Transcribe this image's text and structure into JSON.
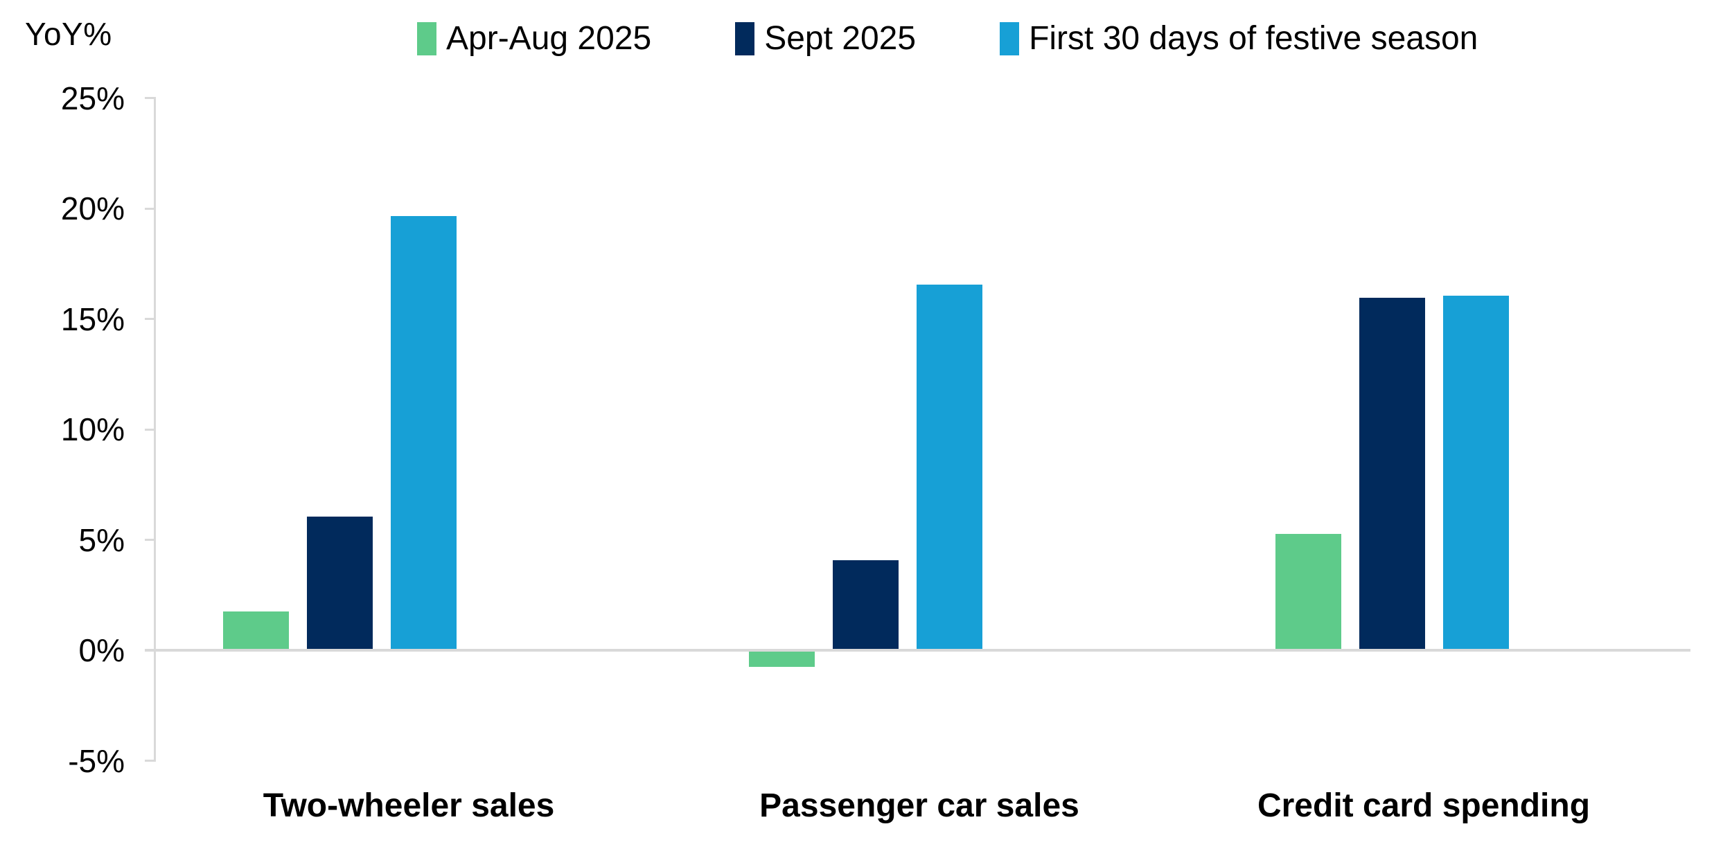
{
  "chart_data": {
    "type": "bar",
    "title": "",
    "ylabel": "YoY%",
    "xlabel": "",
    "ylim": [
      -5,
      25
    ],
    "ytick_step": 5,
    "yticks": [
      {
        "value": 25,
        "label": "25%"
      },
      {
        "value": 20,
        "label": "20%"
      },
      {
        "value": 15,
        "label": "15%"
      },
      {
        "value": 10,
        "label": "10%"
      },
      {
        "value": 5,
        "label": "5%"
      },
      {
        "value": 0,
        "label": "0%"
      },
      {
        "value": -5,
        "label": "-5%"
      }
    ],
    "categories": [
      "Two-wheeler sales",
      "Passenger car sales",
      "Credit card spending"
    ],
    "series": [
      {
        "name": "Apr-Aug 2025",
        "color": "#5ECB8A",
        "values": [
          1.7,
          -0.7,
          5.2
        ]
      },
      {
        "name": "Sept 2025",
        "color": "#012A5C",
        "values": [
          6.0,
          4.0,
          15.9
        ]
      },
      {
        "name": "First 30 days of festive season",
        "color": "#17A0D6",
        "values": [
          19.6,
          16.5,
          16.0
        ]
      }
    ],
    "legend_position": "top",
    "grid": false,
    "axis_color": "#D9D9D9",
    "text_color": "#000000"
  }
}
